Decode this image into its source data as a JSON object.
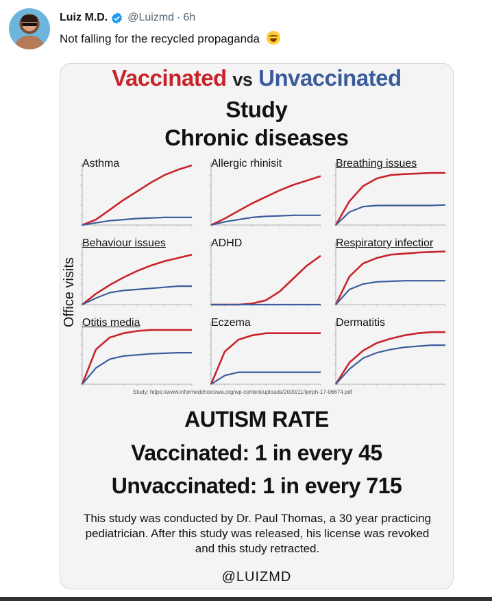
{
  "tweet": {
    "display_name": "Luiz M.D.",
    "handle": "@Luizmd",
    "separator": "·",
    "time": "6h",
    "text": "Not falling for the recycled propaganda",
    "emoji": "face-with-tears-of-joy",
    "verified_color": "#1d9bf0"
  },
  "infographic": {
    "title_vaccinated": "Vaccinated",
    "title_vs": "vs",
    "title_unvaccinated": "Unvaccinated",
    "title_line2": "Study",
    "title_line3": "Chronic diseases",
    "y_axis_label": "Office visits",
    "source": "Study: https://www.informedchoicewa.org/wp-content/uploads/2020/11/ijerph-17-06674.pdf",
    "autism_heading": "AUTISM RATE",
    "vaccinated_rate": "Vaccinated: 1 in every 45",
    "unvaccinated_rate": "Unvaccinated: 1 in every 715",
    "note": "This study was conducted by Dr. Paul Thomas, a 30 year practicing pediatrician. After this study was released, his license was revoked and this study retracted.",
    "signature": "@LUIZMD",
    "colors": {
      "vaccinated": "#c8232a",
      "unvaccinated": "#3b5c9c"
    }
  },
  "chart_data": [
    {
      "type": "line",
      "title": "Asthma",
      "x": [
        0,
        1,
        2,
        3,
        4,
        5,
        6,
        7,
        8
      ],
      "series": [
        {
          "values": [
            0,
            5,
            14,
            23,
            31,
            39,
            46,
            51,
            55
          ]
        },
        {
          "values": [
            0,
            2,
            4,
            5,
            6,
            6.5,
            7,
            7,
            7
          ]
        }
      ]
    },
    {
      "type": "line",
      "title": "Allergic rhinisit",
      "x": [
        0,
        1,
        2,
        3,
        4,
        5,
        6,
        7,
        8
      ],
      "series": [
        {
          "values": [
            0,
            6,
            13,
            20,
            26,
            32,
            37,
            41,
            45
          ]
        },
        {
          "values": [
            0,
            3,
            5,
            7,
            8,
            8.5,
            9,
            9,
            9
          ]
        }
      ]
    },
    {
      "type": "line",
      "title": "Breathing issues",
      "x": [
        0,
        1,
        2,
        3,
        4,
        5,
        6,
        7,
        8
      ],
      "series": [
        {
          "values": [
            0,
            22,
            36,
            43,
            46,
            47,
            47.5,
            48,
            48
          ]
        },
        {
          "values": [
            0,
            12,
            17,
            18,
            18,
            18,
            18,
            18,
            18.5
          ]
        }
      ]
    },
    {
      "type": "line",
      "title": "Behaviour issues",
      "x": [
        0,
        1,
        2,
        3,
        4,
        5,
        6,
        7,
        8
      ],
      "series": [
        {
          "values": [
            0,
            10,
            18,
            25,
            31,
            36,
            40,
            43,
            46
          ]
        },
        {
          "values": [
            0,
            6,
            11,
            13,
            14,
            15,
            16,
            17,
            17
          ]
        }
      ]
    },
    {
      "type": "line",
      "title": "ADHD",
      "x": [
        0,
        1,
        2,
        3,
        4,
        5,
        6,
        7,
        8
      ],
      "series": [
        {
          "values": [
            0,
            0,
            0,
            1,
            4,
            12,
            24,
            36,
            45
          ]
        },
        {
          "values": [
            0,
            0,
            0,
            0,
            0,
            0,
            0,
            0,
            0
          ]
        }
      ]
    },
    {
      "type": "line",
      "title": "Respiratory infectior",
      "x": [
        0,
        1,
        2,
        3,
        4,
        5,
        6,
        7,
        8
      ],
      "series": [
        {
          "values": [
            0,
            26,
            38,
            43,
            46,
            47,
            48,
            48.5,
            49
          ]
        },
        {
          "values": [
            0,
            14,
            19,
            21,
            21.5,
            22,
            22,
            22,
            22
          ]
        }
      ]
    },
    {
      "type": "line",
      "title": "Otitis media",
      "x": [
        0,
        1,
        2,
        3,
        4,
        5,
        6,
        7,
        8
      ],
      "series": [
        {
          "values": [
            0,
            32,
            43,
            47,
            49,
            50,
            50,
            50,
            50
          ]
        },
        {
          "values": [
            0,
            15,
            23,
            26,
            27,
            28,
            28.5,
            29,
            29
          ]
        }
      ]
    },
    {
      "type": "line",
      "title": "Eczema",
      "x": [
        0,
        1,
        2,
        3,
        4,
        5,
        6,
        7,
        8
      ],
      "series": [
        {
          "values": [
            0,
            30,
            41,
            45,
            47,
            47,
            47,
            47,
            47
          ]
        },
        {
          "values": [
            0,
            8,
            11,
            11,
            11,
            11,
            11,
            11,
            11
          ]
        }
      ]
    },
    {
      "type": "line",
      "title": "Dermatitis",
      "x": [
        0,
        1,
        2,
        3,
        4,
        5,
        6,
        7,
        8
      ],
      "series": [
        {
          "values": [
            0,
            20,
            31,
            38,
            42,
            45,
            47,
            48,
            48
          ]
        },
        {
          "values": [
            0,
            14,
            24,
            29,
            32,
            34,
            35,
            36,
            36
          ]
        }
      ]
    }
  ]
}
